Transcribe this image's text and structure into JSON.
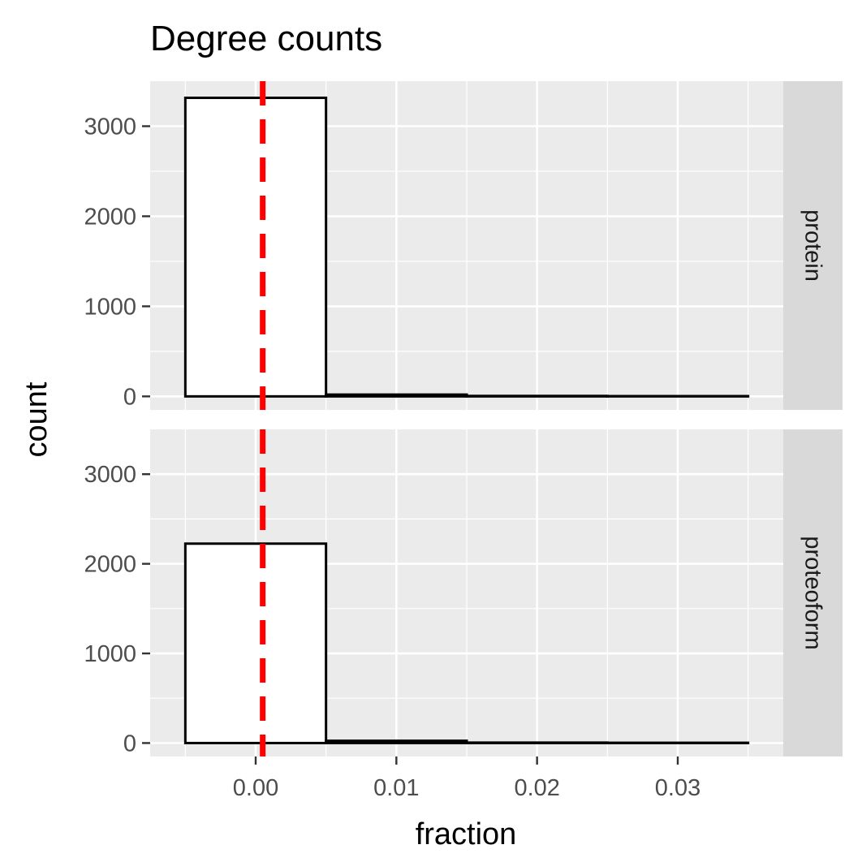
{
  "chart_data": {
    "type": "bar",
    "title": "Degree counts",
    "xlabel": "fraction",
    "ylabel": "count",
    "xlim": [
      -0.0075,
      0.0375
    ],
    "ylim": [
      -150,
      3500
    ],
    "x_ticks": [
      0.0,
      0.01,
      0.02,
      0.03
    ],
    "x_tick_labels": [
      "0.00",
      "0.01",
      "0.02",
      "0.03"
    ],
    "y_ticks": [
      0,
      1000,
      2000,
      3000
    ],
    "y_tick_labels": [
      "0",
      "1000",
      "2000",
      "3000"
    ],
    "grid": true,
    "bin_width": 0.01,
    "bin_edges": [
      -0.005,
      0.005,
      0.015,
      0.025,
      0.035
    ],
    "reference_line": {
      "x": 0.0005,
      "style": "dashed",
      "color": "#ff0000"
    },
    "bar_fill": "#ffffff",
    "bar_outline": "#000000",
    "panel_background": "#ebebeb",
    "strip_background": "#d9d9d9",
    "facets": [
      {
        "label": "protein",
        "values": [
          3315,
          20,
          5,
          3
        ]
      },
      {
        "label": "proteoform",
        "values": [
          2225,
          25,
          5,
          3
        ]
      }
    ]
  }
}
